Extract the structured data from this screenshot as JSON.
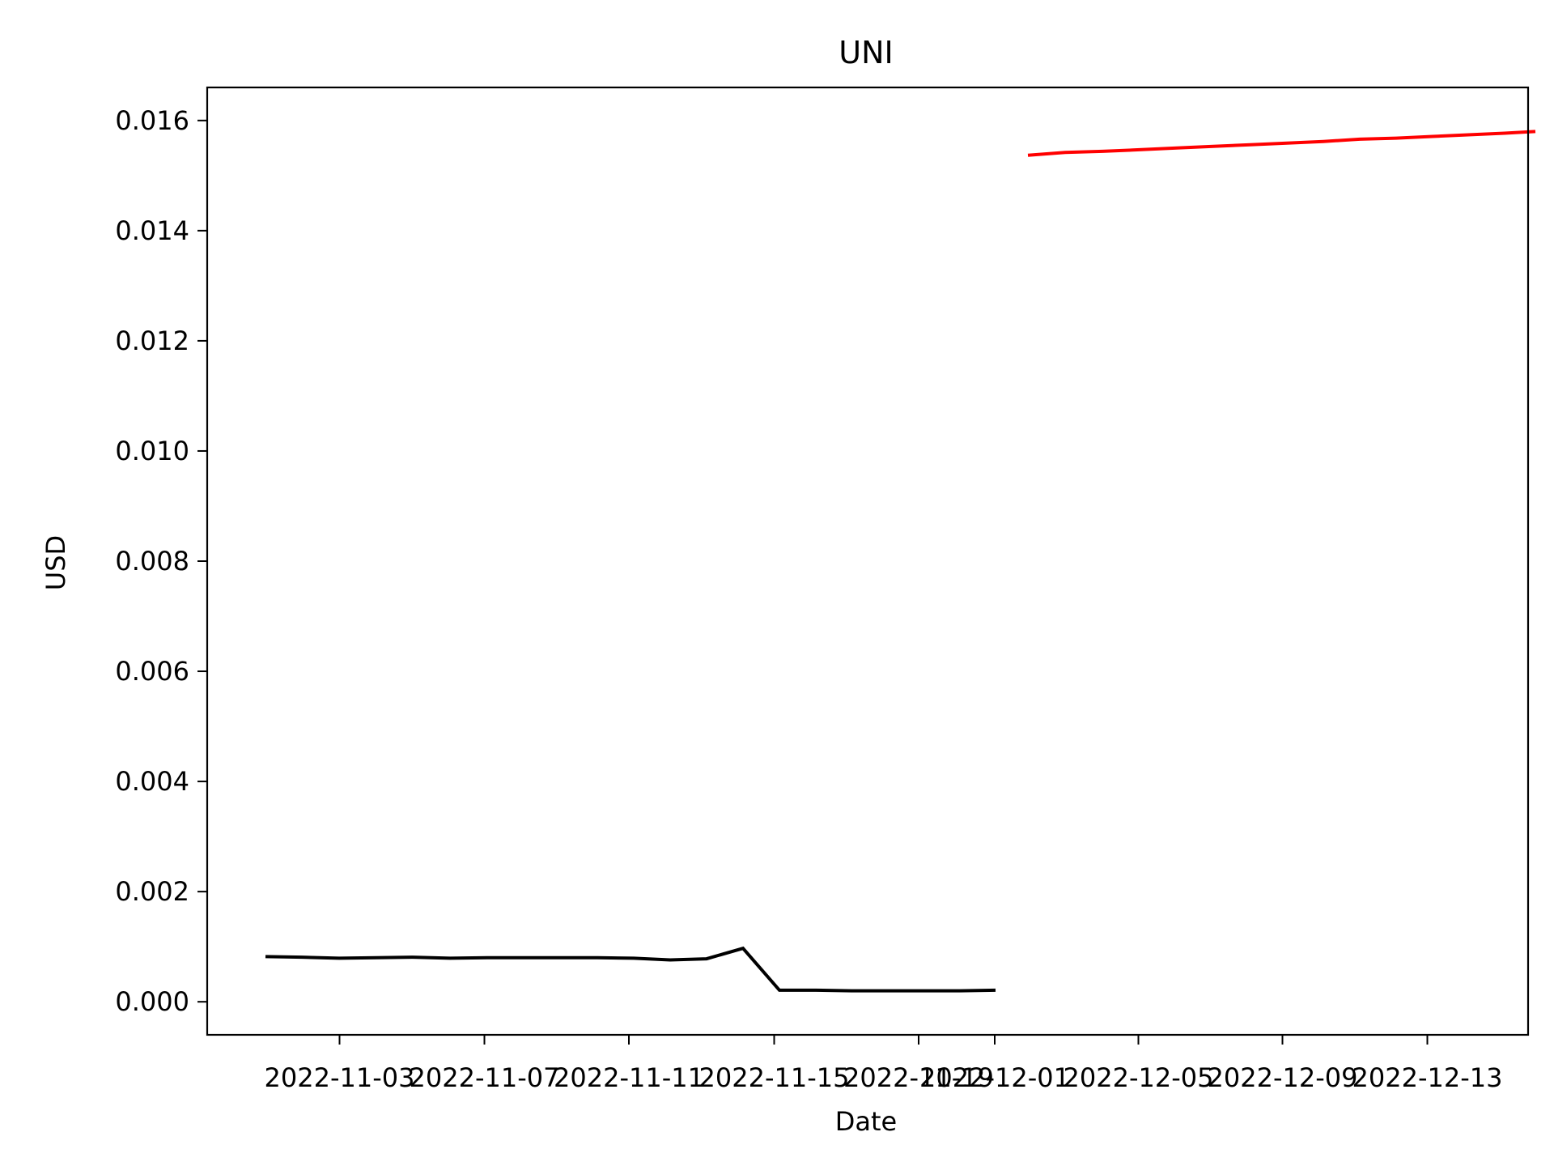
{
  "chart_data": {
    "type": "line",
    "title": "UNI",
    "xlabel": "Date",
    "ylabel": "USD",
    "grid": false,
    "xlim": [
      "2022-10-30",
      "2022-12-14"
    ],
    "ylim": [
      -0.0006,
      0.0166
    ],
    "x_ticks": [
      "2022-11-03",
      "2022-11-07",
      "2022-11-11",
      "2022-11-15",
      "2022-11-19",
      "2022-12-01",
      "2022-12-05",
      "2022-12-09",
      "2022-12-13"
    ],
    "y_ticks": [
      "0.000",
      "0.002",
      "0.004",
      "0.006",
      "0.008",
      "0.010",
      "0.012",
      "0.014",
      "0.016"
    ],
    "series": [
      {
        "color": "#000000",
        "points": [
          {
            "x": "2022-10-31",
            "y": 0.00082
          },
          {
            "x": "2022-11-01",
            "y": 0.00081
          },
          {
            "x": "2022-11-02",
            "y": 0.00079
          },
          {
            "x": "2022-11-03",
            "y": 0.0008
          },
          {
            "x": "2022-11-04",
            "y": 0.00081
          },
          {
            "x": "2022-11-05",
            "y": 0.00079
          },
          {
            "x": "2022-11-06",
            "y": 0.0008
          },
          {
            "x": "2022-11-07",
            "y": 0.0008
          },
          {
            "x": "2022-11-08",
            "y": 0.0008
          },
          {
            "x": "2022-11-09",
            "y": 0.0008
          },
          {
            "x": "2022-11-10",
            "y": 0.00079
          },
          {
            "x": "2022-11-11",
            "y": 0.00076
          },
          {
            "x": "2022-11-12",
            "y": 0.00078
          },
          {
            "x": "2022-11-13",
            "y": 0.00097
          },
          {
            "x": "2022-11-14",
            "y": 0.00021
          },
          {
            "x": "2022-11-15",
            "y": 0.00021
          },
          {
            "x": "2022-11-16",
            "y": 0.0002
          },
          {
            "x": "2022-11-17",
            "y": 0.0002
          },
          {
            "x": "2022-11-18",
            "y": 0.0002
          },
          {
            "x": "2022-11-19",
            "y": 0.0002
          },
          {
            "x": "2022-11-20",
            "y": 0.00021
          }
        ]
      },
      {
        "color": "#ff0000",
        "points": [
          {
            "x": "2022-11-30",
            "y": 0.01537
          },
          {
            "x": "2022-12-01",
            "y": 0.01542
          },
          {
            "x": "2022-12-02",
            "y": 0.01544
          },
          {
            "x": "2022-12-03",
            "y": 0.01547
          },
          {
            "x": "2022-12-04",
            "y": 0.0155
          },
          {
            "x": "2022-12-05",
            "y": 0.01553
          },
          {
            "x": "2022-12-06",
            "y": 0.01556
          },
          {
            "x": "2022-12-07",
            "y": 0.01559
          },
          {
            "x": "2022-12-08",
            "y": 0.01562
          },
          {
            "x": "2022-12-09",
            "y": 0.01566
          },
          {
            "x": "2022-12-10",
            "y": 0.01568
          },
          {
            "x": "2022-12-11",
            "y": 0.01571
          },
          {
            "x": "2022-12-12",
            "y": 0.01574
          },
          {
            "x": "2022-12-13",
            "y": 0.01577
          },
          {
            "x": "2022-12-14",
            "y": 0.0158
          }
        ]
      }
    ]
  }
}
